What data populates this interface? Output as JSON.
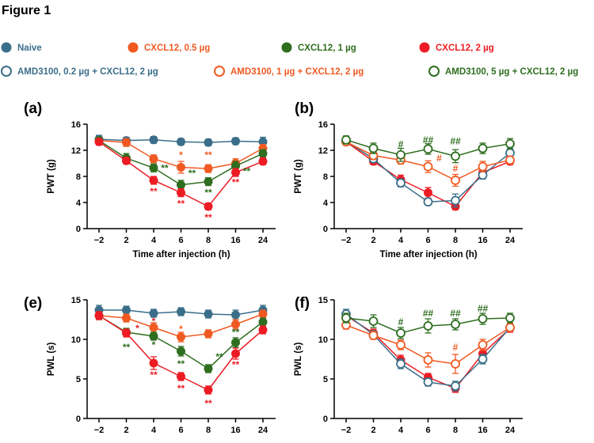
{
  "figure": {
    "title": "Figure 1"
  },
  "colors": {
    "naive": "#3b6e8a",
    "low": "#f05a22",
    "mid": "#2e6e1f",
    "high": "#ed1c24"
  },
  "legend": [
    {
      "label": "Naive",
      "color": "#3b6e8a",
      "filled": true
    },
    {
      "label": "CXCL12, 0.5 µg",
      "color": "#f05a22",
      "filled": true
    },
    {
      "label": "CXCL12, 1 µg",
      "color": "#2e6e1f",
      "filled": true
    },
    {
      "label": "CXCL12, 2 µg",
      "color": "#ed1c24",
      "filled": true
    },
    {
      "label": "AMD3100, 0.2 µg + CXCL12, 2 µg",
      "color": "#3b6e8a",
      "filled": false
    },
    {
      "label": "AMD3100, 1 µg + CXCL12, 2 µg",
      "color": "#f05a22",
      "filled": false
    },
    {
      "label": "AMD3100, 5 µg + CXCL12, 2 µg",
      "color": "#2e6e1f",
      "filled": false
    }
  ],
  "chart_data": [
    {
      "panel": "(a)",
      "type": "line",
      "categories": [
        "−2",
        "2",
        "4",
        "6",
        "8",
        "16",
        "24"
      ],
      "xlabel": "Time after injection (h)",
      "ylabel": "PWT (g)",
      "ylim": [
        0,
        16
      ],
      "yticks": [
        0,
        4,
        8,
        12,
        16
      ],
      "series": [
        {
          "name": "Naive",
          "color": "#3b6e8a",
          "filled": true,
          "values": [
            13.7,
            13.5,
            13.6,
            13.3,
            13.2,
            13.4,
            13.3
          ],
          "errors": [
            0.6,
            0.5,
            0.5,
            0.5,
            0.5,
            0.5,
            0.7
          ]
        },
        {
          "name": "CXCL12, 0.5 µg",
          "color": "#f05a22",
          "filled": true,
          "values": [
            13.5,
            13.2,
            10.7,
            9.4,
            9.2,
            10.0,
            12.3
          ],
          "errors": [
            0.5,
            0.6,
            0.6,
            0.9,
            0.6,
            0.7,
            0.6
          ]
        },
        {
          "name": "CXCL12, 1 µg",
          "color": "#2e6e1f",
          "filled": true,
          "values": [
            13.5,
            10.8,
            9.3,
            6.7,
            7.2,
            9.6,
            11.5
          ],
          "errors": [
            0.5,
            0.7,
            0.6,
            0.7,
            0.6,
            0.7,
            0.6
          ]
        },
        {
          "name": "CXCL12, 2 µg",
          "color": "#ed1c24",
          "filled": true,
          "values": [
            13.3,
            10.4,
            7.4,
            5.5,
            3.4,
            8.6,
            10.3
          ],
          "errors": [
            0.5,
            0.5,
            0.6,
            0.6,
            0.5,
            0.6,
            0.5
          ]
        }
      ],
      "annotations": [
        {
          "x": "4",
          "y": 9.3,
          "text": "**",
          "color": "#2e6e1f",
          "dx": 14
        },
        {
          "x": "6",
          "y": 11.3,
          "text": "*",
          "color": "#f05a22",
          "dx": 0
        },
        {
          "x": "6",
          "y": 8.5,
          "text": "**",
          "color": "#2e6e1f",
          "dx": 14
        },
        {
          "x": "8",
          "y": 11.3,
          "text": "**",
          "color": "#f05a22",
          "dx": 0
        },
        {
          "x": "8",
          "y": 5.5,
          "text": "**",
          "color": "#2e6e1f",
          "dx": 0
        },
        {
          "x": "4",
          "y": 5.7,
          "text": "**",
          "color": "#ed1c24",
          "dx": 0
        },
        {
          "x": "6",
          "y": 3.8,
          "text": "**",
          "color": "#ed1c24",
          "dx": 0
        },
        {
          "x": "8",
          "y": 1.7,
          "text": "**",
          "color": "#ed1c24",
          "dx": 0
        },
        {
          "x": "16",
          "y": 7.1,
          "text": "**",
          "color": "#ed1c24",
          "dx": 0
        },
        {
          "x": "16",
          "y": 8.8,
          "text": "**",
          "color": "#2e6e1f",
          "dx": 14
        }
      ]
    },
    {
      "panel": "(b)",
      "type": "line",
      "categories": [
        "−2",
        "2",
        "4",
        "6",
        "8",
        "16",
        "24"
      ],
      "xlabel": "Time after injection (h)",
      "ylabel": "PWT (g)",
      "ylim": [
        0,
        16
      ],
      "yticks": [
        0,
        4,
        8,
        12,
        16
      ],
      "series": [
        {
          "name": "CXCL12, 2 µg",
          "color": "#ed1c24",
          "filled": true,
          "values": [
            13.3,
            10.3,
            7.5,
            5.5,
            3.4,
            8.6,
            10.3
          ],
          "errors": [
            0.5,
            0.5,
            0.7,
            0.8,
            0.5,
            0.6,
            0.5
          ]
        },
        {
          "name": "AMD3100, 0.2 µg + CXCL12, 2 µg",
          "color": "#3b6e8a",
          "filled": false,
          "values": [
            13.4,
            10.7,
            7.0,
            4.1,
            4.3,
            8.2,
            11.6
          ],
          "errors": [
            0.5,
            0.5,
            0.6,
            0.5,
            1.0,
            0.6,
            0.7
          ]
        },
        {
          "name": "AMD3100, 1 µg + CXCL12, 2 µg",
          "color": "#f05a22",
          "filled": false,
          "values": [
            13.3,
            11.2,
            10.5,
            9.5,
            7.4,
            9.5,
            10.5
          ],
          "errors": [
            0.5,
            0.6,
            0.6,
            0.9,
            0.9,
            0.8,
            0.6
          ]
        },
        {
          "name": "AMD3100, 5 µg + CXCL12, 2 µg",
          "color": "#2e6e1f",
          "filled": false,
          "values": [
            13.6,
            12.3,
            11.3,
            12.2,
            11.1,
            12.3,
            13.0
          ],
          "errors": [
            0.6,
            0.8,
            1.0,
            0.8,
            1.0,
            0.8,
            0.8
          ]
        }
      ],
      "annotations": [
        {
          "x": "4",
          "y": 12.9,
          "text": "#",
          "color": "#2e6e1f",
          "dx": 0
        },
        {
          "x": "6",
          "y": 13.6,
          "text": "##",
          "color": "#2e6e1f",
          "dx": 0
        },
        {
          "x": "8",
          "y": 13.4,
          "text": "##",
          "color": "#2e6e1f",
          "dx": 0
        },
        {
          "x": "6",
          "y": 10.8,
          "text": "#",
          "color": "#f05a22",
          "dx": 14
        },
        {
          "x": "8",
          "y": 9.2,
          "text": "#",
          "color": "#f05a22",
          "dx": 0
        }
      ]
    },
    {
      "panel": "(e)",
      "type": "line",
      "categories": [
        "−2",
        "2",
        "4",
        "6",
        "8",
        "16",
        "24"
      ],
      "xlabel": "Time after injection (h)",
      "ylabel": "PWL (s)",
      "ylim": [
        0,
        15
      ],
      "yticks": [
        0,
        5,
        10,
        15
      ],
      "series": [
        {
          "name": "Naive",
          "color": "#3b6e8a",
          "filled": true,
          "values": [
            13.7,
            13.7,
            13.3,
            13.5,
            13.2,
            13.1,
            13.7
          ],
          "errors": [
            0.6,
            0.5,
            0.5,
            0.5,
            0.5,
            0.6,
            0.6
          ]
        },
        {
          "name": "CXCL12, 0.5 µg",
          "color": "#f05a22",
          "filled": true,
          "values": [
            13.0,
            12.7,
            11.5,
            10.3,
            10.7,
            11.9,
            13.2
          ],
          "errors": [
            0.5,
            0.5,
            0.6,
            0.6,
            0.5,
            0.6,
            0.5
          ]
        },
        {
          "name": "CXCL12, 1 µg",
          "color": "#2e6e1f",
          "filled": true,
          "values": [
            13.0,
            10.9,
            10.4,
            8.5,
            6.3,
            9.6,
            12.2
          ],
          "errors": [
            0.5,
            0.5,
            0.5,
            0.6,
            0.5,
            0.6,
            0.5
          ]
        },
        {
          "name": "CXCL12, 2 µg",
          "color": "#ed1c24",
          "filled": true,
          "values": [
            13.0,
            10.8,
            7.0,
            5.3,
            3.6,
            8.2,
            11.2
          ],
          "errors": [
            0.5,
            0.5,
            0.8,
            0.5,
            0.5,
            0.7,
            0.5
          ]
        }
      ],
      "annotations": [
        {
          "x": "2",
          "y": 11.4,
          "text": "*",
          "color": "#ed1c24",
          "dx": 14
        },
        {
          "x": "4",
          "y": 12.3,
          "text": "*",
          "color": "#ed1c24",
          "dx": 0
        },
        {
          "x": "6",
          "y": 11.3,
          "text": "*",
          "color": "#f05a22",
          "dx": 0
        },
        {
          "x": "2",
          "y": 9.0,
          "text": "**",
          "color": "#2e6e1f",
          "dx": 0
        },
        {
          "x": "4",
          "y": 9.3,
          "text": "*",
          "color": "#2e6e1f",
          "dx": 0
        },
        {
          "x": "6",
          "y": 6.9,
          "text": "**",
          "color": "#2e6e1f",
          "dx": 0
        },
        {
          "x": "8",
          "y": 7.8,
          "text": "**",
          "color": "#2e6e1f",
          "dx": 14
        },
        {
          "x": "16",
          "y": 10.9,
          "text": "**",
          "color": "#2e6e1f",
          "dx": 0
        },
        {
          "x": "4",
          "y": 5.5,
          "text": "**",
          "color": "#ed1c24",
          "dx": 0
        },
        {
          "x": "6",
          "y": 3.8,
          "text": "**",
          "color": "#ed1c24",
          "dx": 0
        },
        {
          "x": "8",
          "y": 1.9,
          "text": "**",
          "color": "#ed1c24",
          "dx": 0
        },
        {
          "x": "16",
          "y": 6.8,
          "text": "**",
          "color": "#ed1c24",
          "dx": 0
        }
      ]
    },
    {
      "panel": "(f)",
      "type": "line",
      "categories": [
        "−2",
        "2",
        "4",
        "6",
        "8",
        "16",
        "24"
      ],
      "xlabel": "Time after injection (h)",
      "ylabel": "PWL (s)",
      "ylim": [
        0,
        15
      ],
      "yticks": [
        0,
        5,
        10,
        15
      ],
      "series": [
        {
          "name": "CXCL12, 2 µg",
          "color": "#ed1c24",
          "filled": true,
          "values": [
            13.0,
            10.8,
            7.4,
            5.2,
            3.8,
            8.2,
            11.4
          ],
          "errors": [
            0.5,
            0.5,
            0.6,
            0.5,
            0.5,
            0.6,
            0.5
          ]
        },
        {
          "name": "AMD3100, 0.2 µg + CXCL12, 2 µg",
          "color": "#3b6e8a",
          "filled": false,
          "values": [
            13.2,
            10.6,
            6.9,
            4.6,
            4.1,
            7.5,
            11.5
          ],
          "errors": [
            0.6,
            0.5,
            0.6,
            0.5,
            0.6,
            0.6,
            0.5
          ]
        },
        {
          "name": "AMD3100, 1 µg + CXCL12, 2 µg",
          "color": "#f05a22",
          "filled": false,
          "values": [
            11.8,
            10.5,
            9.3,
            7.4,
            6.9,
            9.3,
            11.5
          ],
          "errors": [
            0.5,
            0.5,
            0.6,
            0.9,
            1.2,
            0.7,
            0.5
          ]
        },
        {
          "name": "AMD3100, 5 µg + CXCL12, 2 µg",
          "color": "#2e6e1f",
          "filled": false,
          "values": [
            12.7,
            12.3,
            10.8,
            11.7,
            11.9,
            12.6,
            12.7
          ],
          "errors": [
            0.6,
            0.8,
            0.7,
            0.9,
            0.7,
            0.7,
            0.6
          ]
        }
      ],
      "annotations": [
        {
          "x": "4",
          "y": 12.2,
          "text": "#",
          "color": "#2e6e1f",
          "dx": 0
        },
        {
          "x": "6",
          "y": 13.3,
          "text": "##",
          "color": "#2e6e1f",
          "dx": 0
        },
        {
          "x": "8",
          "y": 13.3,
          "text": "##",
          "color": "#2e6e1f",
          "dx": 0
        },
        {
          "x": "16",
          "y": 13.9,
          "text": "##",
          "color": "#2e6e1f",
          "dx": 0
        },
        {
          "x": "8",
          "y": 9.0,
          "text": "#",
          "color": "#f05a22",
          "dx": 0
        }
      ]
    }
  ]
}
